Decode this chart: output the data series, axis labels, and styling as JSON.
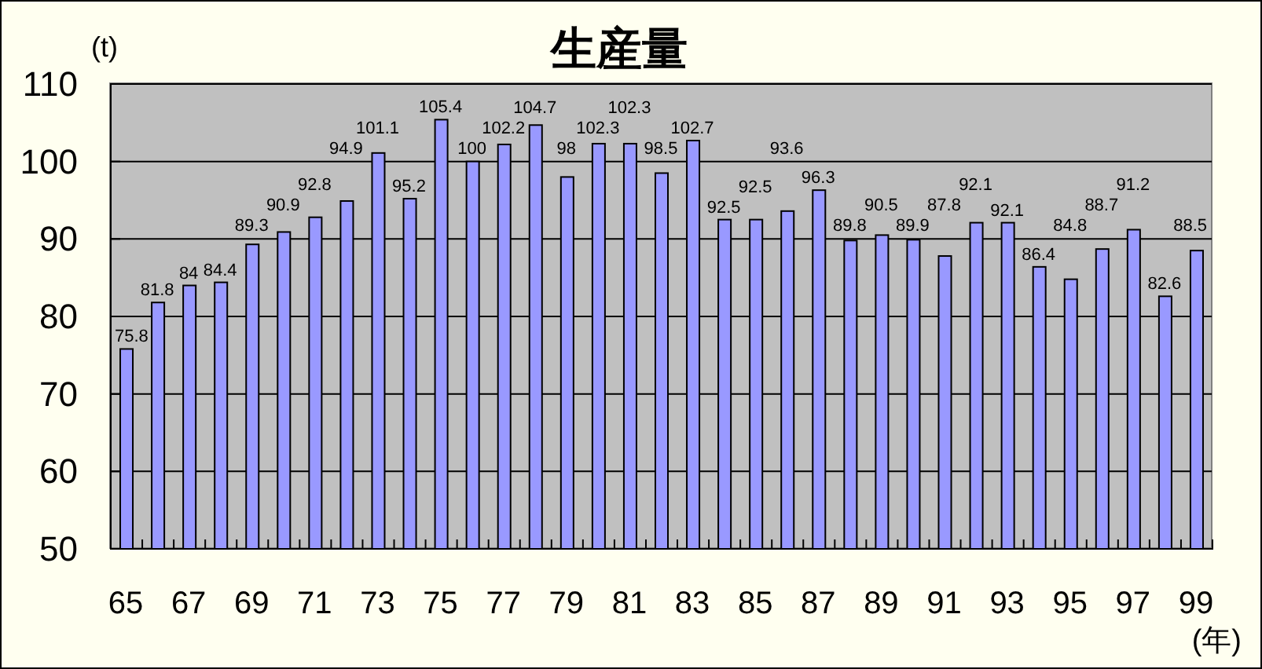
{
  "chart_data": {
    "type": "bar",
    "title": "生産量",
    "ylabel": "(t)",
    "xlabel": "(年)",
    "categories": [
      "65",
      null,
      "67",
      null,
      "69",
      null,
      "71",
      null,
      "73",
      null,
      "75",
      null,
      "77",
      null,
      "79",
      null,
      "81",
      null,
      "83",
      null,
      "85",
      null,
      "87",
      null,
      "89",
      null,
      "91",
      null,
      "93",
      null,
      "95",
      null,
      "97",
      null,
      "99"
    ],
    "values": [
      75.8,
      81.8,
      84,
      84.4,
      89.3,
      90.9,
      92.8,
      94.9,
      101.1,
      95.2,
      105.4,
      100,
      102.2,
      104.7,
      98,
      102.3,
      102.3,
      98.5,
      102.7,
      92.5,
      92.5,
      93.6,
      96.3,
      89.8,
      90.5,
      89.9,
      87.8,
      92.1,
      92.1,
      86.4,
      84.8,
      88.7,
      91.2,
      82.6,
      88.5
    ],
    "color": "#9999ff",
    "ylim": [
      50,
      110
    ],
    "yticks": [
      50,
      60,
      70,
      80,
      90,
      100,
      110
    ],
    "grid": "y",
    "data_labels": true
  }
}
